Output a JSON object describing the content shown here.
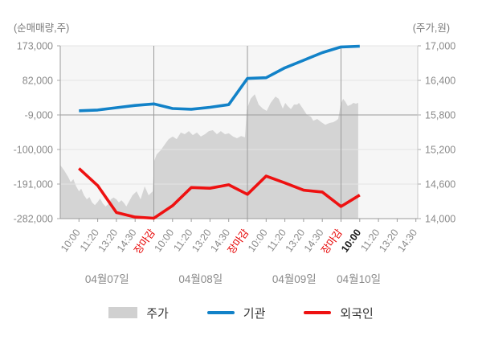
{
  "chart_data": {
    "type": "area+line",
    "title": "",
    "left_axis": {
      "label": "(순매매량,주)",
      "max": 173000,
      "min": -282000,
      "ticks": [
        173000,
        82000,
        -9000,
        -100000,
        -191000,
        -282000
      ]
    },
    "right_axis": {
      "label": "(주가,원)",
      "max": 17000,
      "min": 14000,
      "ticks": [
        17000,
        16400,
        15800,
        15200,
        14600,
        14000
      ]
    },
    "x_time_labels": [
      "10:00",
      "11:20",
      "13:20",
      "14:30",
      "장마감",
      "10:00",
      "11:20",
      "13:20",
      "14:30",
      "장마감",
      "10:00",
      "11:20",
      "13:20",
      "14:30",
      "장마감",
      "10:00",
      "11:20",
      "13:20",
      "14:30"
    ],
    "close_label": "장마감",
    "emphasized_x_index": 15,
    "dates": [
      "04월07일",
      "04월08일",
      "04월09일",
      "04월10일"
    ],
    "grid": true,
    "legend_position": "bottom",
    "series": [
      {
        "name": "주가",
        "type": "area",
        "axis": "right",
        "color": "#d4d4d4",
        "points": [
          [
            0,
            14930
          ],
          [
            0.2,
            14840
          ],
          [
            0.42,
            14725
          ],
          [
            0.56,
            14630
          ],
          [
            0.7,
            14685
          ],
          [
            0.85,
            14560
          ],
          [
            1,
            14475
          ],
          [
            1.12,
            14520
          ],
          [
            1.27,
            14405
          ],
          [
            1.42,
            14335
          ],
          [
            1.56,
            14375
          ],
          [
            1.7,
            14280
          ],
          [
            1.85,
            14235
          ],
          [
            2,
            14290
          ],
          [
            2.13,
            14350
          ],
          [
            2.27,
            14265
          ],
          [
            2.42,
            14210
          ],
          [
            2.56,
            14250
          ],
          [
            2.7,
            14335
          ],
          [
            2.85,
            14365
          ],
          [
            3,
            14335
          ],
          [
            3.13,
            14280
          ],
          [
            3.27,
            14320
          ],
          [
            3.42,
            14265
          ],
          [
            3.53,
            14210
          ],
          [
            3.65,
            14280
          ],
          [
            3.86,
            14405
          ],
          [
            4.08,
            14475
          ],
          [
            4.29,
            14335
          ],
          [
            4.51,
            14560
          ],
          [
            4.72,
            14405
          ],
          [
            4.94,
            14475
          ],
          [
            5.02,
            15005
          ],
          [
            5.15,
            15115
          ],
          [
            5.36,
            15185
          ],
          [
            5.58,
            15285
          ],
          [
            5.79,
            15380
          ],
          [
            6.01,
            15425
          ],
          [
            6.22,
            15380
          ],
          [
            6.44,
            15495
          ],
          [
            6.65,
            15465
          ],
          [
            6.87,
            15520
          ],
          [
            7.08,
            15450
          ],
          [
            7.3,
            15495
          ],
          [
            7.51,
            15425
          ],
          [
            7.73,
            15465
          ],
          [
            7.94,
            15520
          ],
          [
            8.15,
            15535
          ],
          [
            8.37,
            15465
          ],
          [
            8.58,
            15520
          ],
          [
            8.8,
            15465
          ],
          [
            9.01,
            15480
          ],
          [
            9.23,
            15425
          ],
          [
            9.44,
            15395
          ],
          [
            9.66,
            15435
          ],
          [
            9.87,
            15410
          ],
          [
            9.96,
            15885
          ],
          [
            10.09,
            16010
          ],
          [
            10.17,
            16080
          ],
          [
            10.39,
            16160
          ],
          [
            10.52,
            16050
          ],
          [
            10.6,
            15980
          ],
          [
            10.82,
            15910
          ],
          [
            11.03,
            15870
          ],
          [
            11.24,
            16010
          ],
          [
            11.5,
            16120
          ],
          [
            11.67,
            16080
          ],
          [
            11.89,
            15910
          ],
          [
            12.02,
            16010
          ],
          [
            12.15,
            15955
          ],
          [
            12.32,
            15900
          ],
          [
            12.49,
            15980
          ],
          [
            12.66,
            15980
          ],
          [
            12.75,
            16010
          ],
          [
            12.96,
            15910
          ],
          [
            13.18,
            15800
          ],
          [
            13.39,
            15770
          ],
          [
            13.52,
            15700
          ],
          [
            13.73,
            15730
          ],
          [
            13.95,
            15675
          ],
          [
            14.16,
            15630
          ],
          [
            14.38,
            15660
          ],
          [
            14.59,
            15675
          ],
          [
            14.72,
            15700
          ],
          [
            14.85,
            15730
          ],
          [
            14.98,
            15980
          ],
          [
            15.11,
            16080
          ],
          [
            15.24,
            16025
          ],
          [
            15.36,
            15955
          ],
          [
            15.54,
            15980
          ],
          [
            15.66,
            16010
          ],
          [
            15.79,
            15995
          ],
          [
            15.92,
            16010
          ]
        ]
      },
      {
        "name": "기관",
        "type": "line",
        "axis": "left",
        "color": "#1282c8",
        "values": [
          2000,
          4000,
          10000,
          16000,
          20000,
          8000,
          6000,
          11000,
          18000,
          87000,
          89000,
          115000,
          135000,
          155000,
          170000,
          172000
        ]
      },
      {
        "name": "외국인",
        "type": "line",
        "axis": "left",
        "color": "#ee1111",
        "values": [
          -150000,
          -195000,
          -266000,
          -278000,
          -281000,
          -248000,
          -200000,
          -202000,
          -193000,
          -218000,
          -170000,
          -188000,
          -207000,
          -212000,
          -250000,
          -220000
        ]
      }
    ]
  },
  "colors": {
    "plot_bg": "#f6f6f6",
    "grid_light": "#e4e4e4",
    "grid_dark": "#9b9b9b",
    "right_edge": "#c8c8c8",
    "axis_text": "#8a8a8a",
    "date_text": "#8a8a8a",
    "close_label_text": "#e60000",
    "emphasized_text": "#1a1a1a",
    "legend_text": "#333333",
    "area_swatch": "#d0d0d0"
  }
}
